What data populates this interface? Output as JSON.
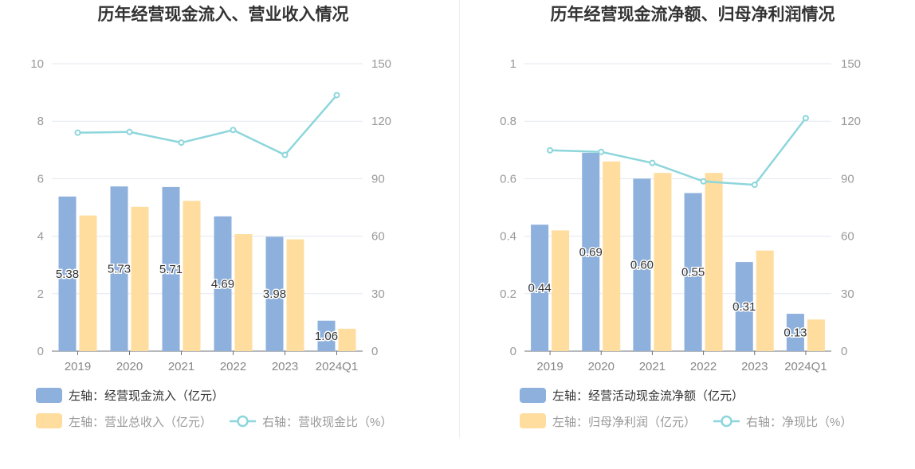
{
  "chart_data": [
    {
      "type": "bar",
      "title": "历年经营现金流入、营业收入情况",
      "categories": [
        "2019",
        "2020",
        "2021",
        "2022",
        "2023",
        "2024Q1"
      ],
      "left_axis": {
        "ylim": [
          0,
          10
        ],
        "ticks": [
          "0",
          "2",
          "4",
          "6",
          "8",
          "10"
        ]
      },
      "right_axis": {
        "ylim": [
          0,
          150
        ],
        "ticks": [
          "0",
          "30",
          "60",
          "90",
          "120",
          "150"
        ]
      },
      "grid": true,
      "legend_position": "bottom-left",
      "series": [
        {
          "name": "经营现金流入（亿元）",
          "axis_label": "左轴：",
          "type": "bar",
          "color": "#8eb0dc",
          "values": [
            5.38,
            5.73,
            5.71,
            4.69,
            3.98,
            1.06
          ],
          "labels": [
            "5.38",
            "5.73",
            "5.71",
            "4.69",
            "3.98",
            "1.06"
          ]
        },
        {
          "name": "营业总收入（亿元）",
          "axis_label": "左轴：",
          "type": "bar",
          "color": "#fedd9f",
          "values": [
            4.72,
            5.02,
            5.23,
            4.07,
            3.89,
            0.78
          ]
        },
        {
          "name": "营收现金比（%）",
          "axis_label": "右轴：",
          "type": "line",
          "color": "#8dd6dc",
          "values": [
            114,
            114.4,
            108.8,
            115.4,
            102.4,
            133.6
          ]
        }
      ]
    },
    {
      "type": "bar",
      "title": "历年经营现金流净额、归母净利润情况",
      "categories": [
        "2019",
        "2020",
        "2021",
        "2022",
        "2023",
        "2024Q1"
      ],
      "left_axis": {
        "ylim": [
          0,
          1
        ],
        "ticks": [
          "0",
          "0.2",
          "0.4",
          "0.6",
          "0.8",
          "1"
        ]
      },
      "right_axis": {
        "ylim": [
          0,
          150
        ],
        "ticks": [
          "0",
          "30",
          "60",
          "90",
          "120",
          "150"
        ]
      },
      "grid": true,
      "legend_position": "bottom-left",
      "series": [
        {
          "name": "经营活动现金流净额（亿元）",
          "axis_label": "左轴：",
          "type": "bar",
          "color": "#8eb0dc",
          "values": [
            0.44,
            0.69,
            0.6,
            0.55,
            0.31,
            0.13
          ],
          "labels": [
            "0.44",
            "0.69",
            "0.60",
            "0.55",
            "0.31",
            "0.13"
          ]
        },
        {
          "name": "归母净利润（亿元）",
          "axis_label": "左轴：",
          "type": "bar",
          "color": "#fedd9f",
          "values": [
            0.42,
            0.66,
            0.62,
            0.62,
            0.35,
            0.11
          ]
        },
        {
          "name": "净现比（%）",
          "axis_label": "右轴：",
          "type": "line",
          "color": "#8dd6dc",
          "values": [
            104.8,
            104,
            98.2,
            88.6,
            86.8,
            121.6
          ]
        }
      ]
    }
  ]
}
